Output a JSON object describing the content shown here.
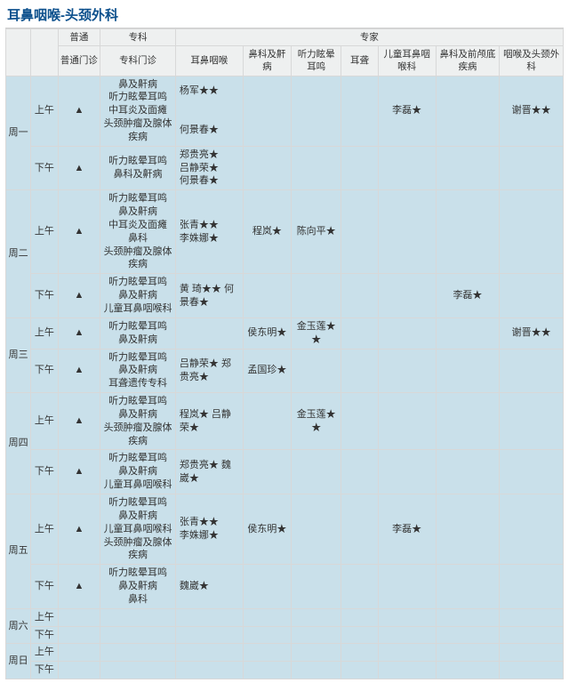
{
  "title": "耳鼻咽喉-头颈外科",
  "columns": {
    "group_general_label": "普通",
    "group_specialist_label": "专科",
    "group_expert_label": "专家",
    "general_clinic": "普通门诊",
    "specialist_clinic": "专科门诊",
    "ebh": "耳鼻咽喉",
    "bkh": "鼻科及鼾病",
    "tl": "听力眩晕耳鸣",
    "er": "耳聋",
    "child": "儿童耳鼻咽喉科",
    "qian": "鼻科及前颅底疾病",
    "yan": "咽喉及头颈外科"
  },
  "days": [
    "周一",
    "周二",
    "周三",
    "周四",
    "周五",
    "周六",
    "周日"
  ],
  "slots": {
    "am": "上午",
    "pm": "下午"
  },
  "mark": "▲",
  "schedule": {
    "d1_am_spec": "鼻及鼾病\n听力眩晕耳鸣\n中耳炎及面瘫\n头颈肿瘤及腺体疾病",
    "d1_am_ebh": "杨军★★\n\n\n何景春★",
    "d1_am_child": "李磊★",
    "d1_am_yan": "谢晋★★",
    "d1_pm_spec": "听力眩晕耳鸣\n鼻科及鼾病",
    "d1_pm_ebh": "郑贵亮★\n吕静荣★\n何景春★",
    "d2_am_spec": "听力眩晕耳鸣\n鼻及鼾病\n中耳炎及面瘫\n鼻科\n头颈肿瘤及腺体疾病",
    "d2_am_ebh": "张青★★\n李姝娜★",
    "d2_am_bkh": "程岚★",
    "d2_am_tl": "陈向平★",
    "d2_pm_spec": "听力眩晕耳鸣\n鼻及鼾病\n儿童耳鼻咽喉科",
    "d2_pm_ebh": "黄 琦★★  何景春★",
    "d2_pm_qian": "李磊★",
    "d3_am_spec": "听力眩晕耳鸣\n鼻及鼾病",
    "d3_am_bkh": "侯东明★",
    "d3_am_tl": "金玉莲★★",
    "d3_am_yan": "谢晋★★",
    "d3_pm_spec": "听力眩晕耳鸣\n鼻及鼾病\n耳聋遗传专科",
    "d3_pm_ebh": "吕静荣★   郑贵亮★",
    "d3_pm_bkh": "孟国珍★",
    "d4_am_spec": "听力眩晕耳鸣\n鼻及鼾病\n头颈肿瘤及腺体疾病",
    "d4_am_ebh": "程岚★   吕静荣★",
    "d4_am_tl": "金玉莲★★",
    "d4_pm_spec": "听力眩晕耳鸣\n鼻及鼾病\n儿童耳鼻咽喉科",
    "d4_pm_ebh": "郑贵亮★   魏崴★",
    "d5_am_spec": "听力眩晕耳鸣\n鼻及鼾病\n儿童耳鼻咽喉科\n头颈肿瘤及腺体疾病",
    "d5_am_ebh": "张青★★\n李姝娜★",
    "d5_am_bkh": "侯东明★",
    "d5_am_child": "李磊★",
    "d5_pm_spec": "听力眩晕耳鸣\n鼻及鼾病\n鼻科",
    "d5_pm_ebh": "魏崴★"
  }
}
